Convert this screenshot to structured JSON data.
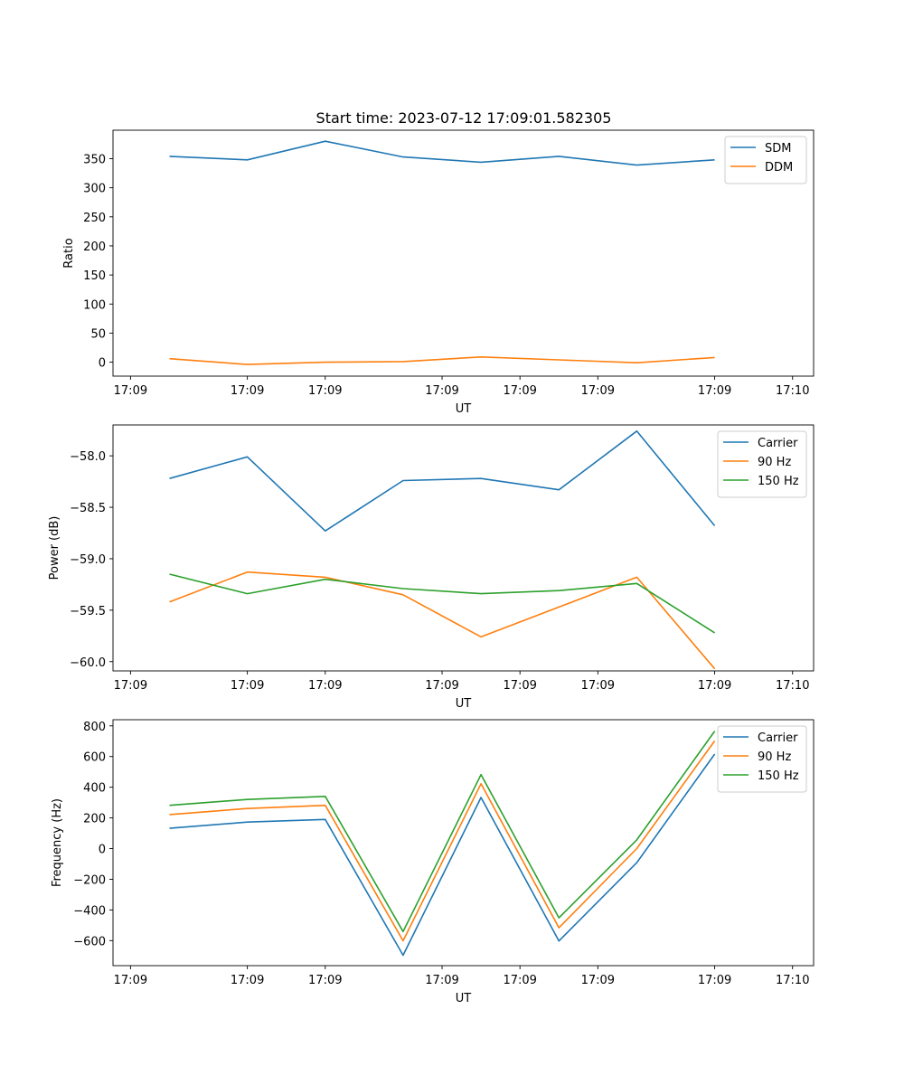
{
  "figure": {
    "title": "Start time: 2023-07-12 17:09:01.582305"
  },
  "chart_data": [
    {
      "type": "line",
      "ylabel": "Ratio",
      "xlabel": "UT",
      "x": [
        1,
        2,
        3,
        4,
        5,
        6,
        7,
        8
      ],
      "xlim": [
        0.275,
        9.27
      ],
      "xticks": [
        {
          "v": 0.5,
          "label": "17:09"
        },
        {
          "v": 2,
          "label": "17:09"
        },
        {
          "v": 3,
          "label": "17:09"
        },
        {
          "v": 4.5,
          "label": "17:09"
        },
        {
          "v": 5.5,
          "label": "17:09"
        },
        {
          "v": 6.5,
          "label": "17:09"
        },
        {
          "v": 8,
          "label": "17:09"
        },
        {
          "v": 9,
          "label": "17:10"
        }
      ],
      "ylim": [
        -24,
        399
      ],
      "yticks": [
        0,
        50,
        100,
        150,
        200,
        250,
        300,
        350
      ],
      "legend_position": "top-right",
      "series": [
        {
          "name": "SDM",
          "color": "#1f77b4",
          "values": [
            354,
            348,
            380,
            353,
            344,
            354,
            339,
            348
          ]
        },
        {
          "name": "DDM",
          "color": "#ff7f0e",
          "values": [
            6,
            -4,
            0,
            1,
            9,
            4,
            -1,
            8
          ]
        }
      ]
    },
    {
      "type": "line",
      "ylabel": "Power (dB)",
      "xlabel": "UT",
      "x": [
        1,
        2,
        3,
        4,
        5,
        6,
        7,
        8
      ],
      "xlim": [
        0.275,
        9.27
      ],
      "xticks": [
        {
          "v": 0.5,
          "label": "17:09"
        },
        {
          "v": 2,
          "label": "17:09"
        },
        {
          "v": 3,
          "label": "17:09"
        },
        {
          "v": 4.5,
          "label": "17:09"
        },
        {
          "v": 5.5,
          "label": "17:09"
        },
        {
          "v": 6.5,
          "label": "17:09"
        },
        {
          "v": 8,
          "label": "17:09"
        },
        {
          "v": 9,
          "label": "17:10"
        }
      ],
      "ylim": [
        -60.09,
        -57.7
      ],
      "yticks": [
        {
          "v": -58.0,
          "label": "−58.0"
        },
        {
          "v": -58.5,
          "label": "−58.5"
        },
        {
          "v": -59.0,
          "label": "−59.0"
        },
        {
          "v": -59.5,
          "label": "−59.5"
        },
        {
          "v": -60.0,
          "label": "−60.0"
        }
      ],
      "legend_position": "top-right",
      "series": [
        {
          "name": "Carrier",
          "color": "#1f77b4",
          "values": [
            -58.22,
            -58.01,
            -58.73,
            -58.24,
            -58.22,
            -58.33,
            -57.76,
            -58.68
          ]
        },
        {
          "name": "90 Hz",
          "color": "#ff7f0e",
          "values": [
            -59.42,
            -59.13,
            -59.18,
            -59.35,
            -59.76,
            -59.47,
            -59.18,
            -60.07
          ]
        },
        {
          "name": "150 Hz",
          "color": "#2ca02c",
          "values": [
            -59.15,
            -59.34,
            -59.2,
            -59.29,
            -59.34,
            -59.31,
            -59.24,
            -59.72
          ]
        }
      ]
    },
    {
      "type": "line",
      "ylabel": "Frequency (Hz)",
      "xlabel": "UT",
      "x": [
        1,
        2,
        3,
        4,
        5,
        6,
        7,
        8
      ],
      "xlim": [
        0.275,
        9.27
      ],
      "xticks": [
        {
          "v": 0.5,
          "label": "17:09"
        },
        {
          "v": 2,
          "label": "17:09"
        },
        {
          "v": 3,
          "label": "17:09"
        },
        {
          "v": 4.5,
          "label": "17:09"
        },
        {
          "v": 5.5,
          "label": "17:09"
        },
        {
          "v": 6.5,
          "label": "17:09"
        },
        {
          "v": 8,
          "label": "17:09"
        },
        {
          "v": 9,
          "label": "17:10"
        }
      ],
      "ylim": [
        -763,
        840
      ],
      "yticks": [
        {
          "v": 800,
          "label": "800"
        },
        {
          "v": 600,
          "label": "600"
        },
        {
          "v": 400,
          "label": "400"
        },
        {
          "v": 200,
          "label": "200"
        },
        {
          "v": 0,
          "label": "0"
        },
        {
          "v": -200,
          "label": "−200"
        },
        {
          "v": -400,
          "label": "−400"
        },
        {
          "v": -600,
          "label": "−600"
        }
      ],
      "legend_position": "top-right",
      "series": [
        {
          "name": "Carrier",
          "color": "#1f77b4",
          "values": [
            132,
            173,
            190,
            -695,
            333,
            -602,
            -92,
            616
          ]
        },
        {
          "name": "90 Hz",
          "color": "#ff7f0e",
          "values": [
            222,
            261,
            282,
            -601,
            423,
            -516,
            0,
            702
          ]
        },
        {
          "name": "150 Hz",
          "color": "#2ca02c",
          "values": [
            282,
            320,
            340,
            -541,
            482,
            -451,
            57,
            766
          ]
        }
      ]
    }
  ]
}
